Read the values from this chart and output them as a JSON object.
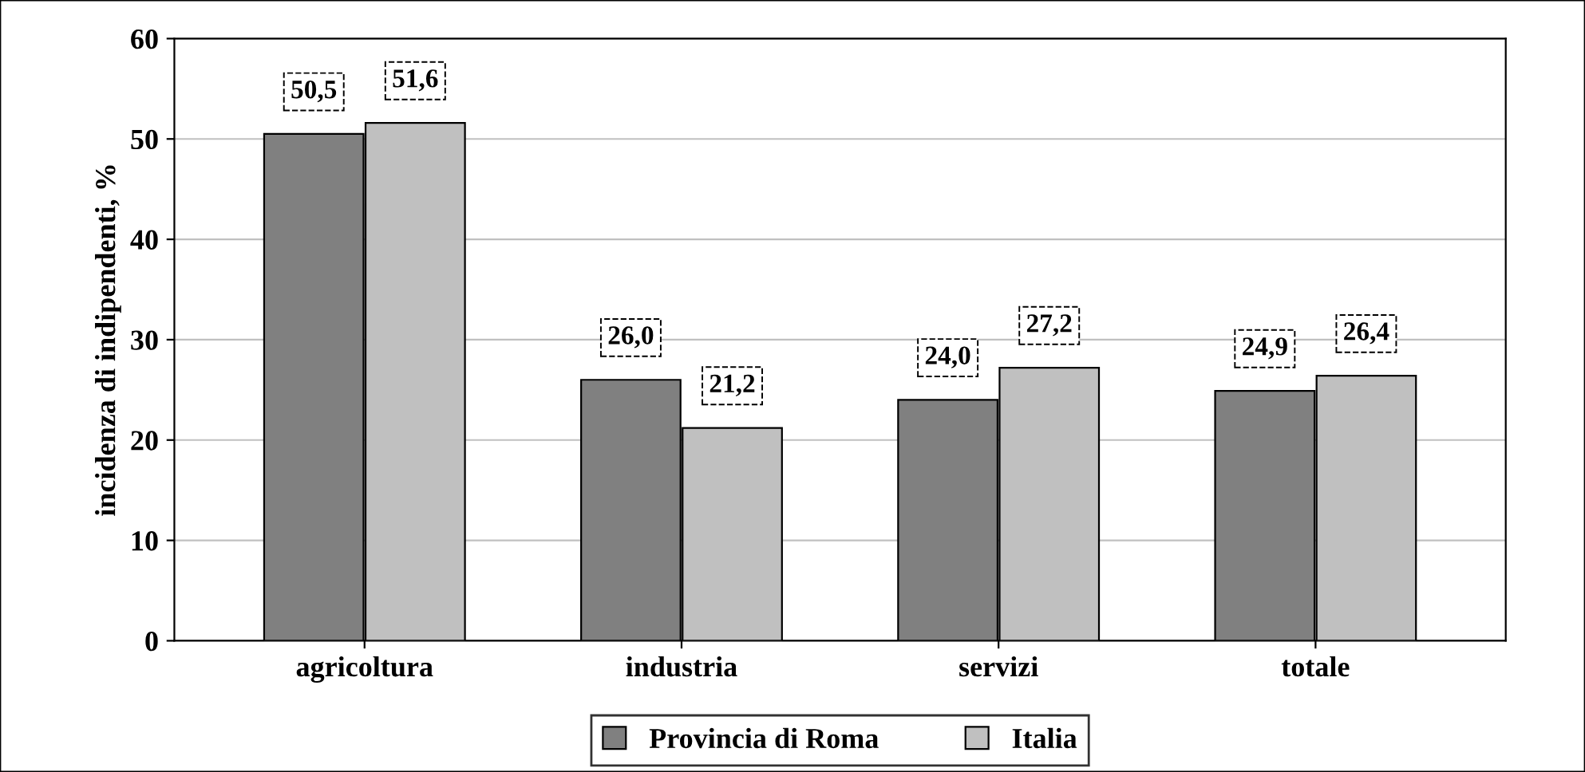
{
  "chart_data": {
    "type": "bar",
    "ylabel": "incidenza di indipendenti, %",
    "categories": [
      "agricoltura",
      "industria",
      "servizi",
      "totale"
    ],
    "series": [
      {
        "name": "Provincia di Roma",
        "color": "#808080",
        "values": [
          50.5,
          26.0,
          24.0,
          24.9
        ],
        "value_labels": [
          "50,5",
          "26,0",
          "24,0",
          "24,9"
        ]
      },
      {
        "name": "Italia",
        "color": "#c0c0c0",
        "values": [
          51.6,
          21.2,
          27.2,
          26.4
        ],
        "value_labels": [
          "51,6",
          "21,2",
          "27,2",
          "26,4"
        ]
      }
    ],
    "ylim": [
      0,
      60
    ],
    "yticks": [
      0,
      10,
      20,
      30,
      40,
      50,
      60
    ],
    "grid": "y",
    "legend": "bottom"
  }
}
